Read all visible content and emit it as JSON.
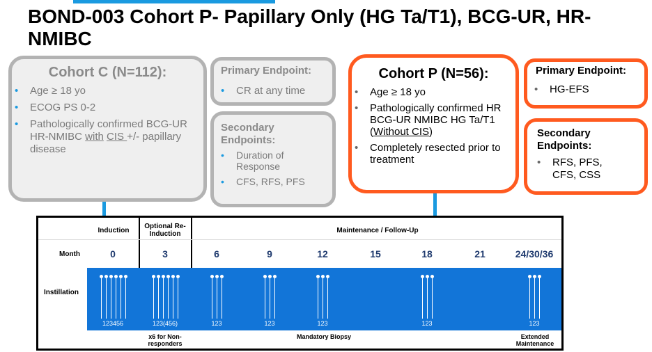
{
  "title": "BOND-003 Cohort P- Papillary Only (HG Ta/T1), BCG-UR, HR-NMIBC",
  "colors": {
    "accent_blue": "#1275d8",
    "orange": "#ff5a1f",
    "gray": "#b3b3b3"
  },
  "cohort_c": {
    "heading": "Cohort C (N=112):",
    "items": [
      "Age ≥ 18 yo",
      "ECOG PS 0-2"
    ],
    "item3_prefix": "Pathologically confirmed BCG-UR HR-NMIBC ",
    "item3_with": "with",
    "item3_cis": "CIS ",
    "item3_suffix": "+/- papillary disease"
  },
  "cohort_c_primary": {
    "heading": "Primary Endpoint:",
    "items": [
      "CR at any time"
    ]
  },
  "cohort_c_secondary": {
    "heading": "Secondary Endpoints:",
    "items": [
      "Duration of Response",
      "CFS, RFS, PFS"
    ]
  },
  "cohort_p": {
    "heading": "Cohort P (N=56):",
    "items": [
      "Age ≥ 18 yo"
    ],
    "item2_prefix": "Pathologically confirmed HR BCG-UR NMIBC HG Ta/T1 (",
    "item2_underlined": "Without CIS",
    "item2_suffix": ")",
    "item3": "Completely resected prior to treatment"
  },
  "cohort_p_primary": {
    "heading": "Primary Endpoint:",
    "items": [
      "HG-EFS"
    ]
  },
  "cohort_p_secondary": {
    "heading": "Secondary Endpoints:",
    "items": [
      "RFS, PFS, CFS, CSS"
    ]
  },
  "bullet": "•",
  "schedule": {
    "phase_induction": "Induction",
    "phase_reinduction": "Optional Re-Induction",
    "phase_maintenance": "Maintenance / Follow-Up",
    "month_label": "Month",
    "months": [
      "0",
      "3",
      "6",
      "9",
      "12",
      "15",
      "18",
      "21",
      "24/30/36"
    ],
    "instillation_label": "Instillation",
    "instillation_counts": [
      "123456",
      "123(456)",
      "123",
      "123",
      "123",
      "",
      "123",
      "",
      "123"
    ],
    "footnotes": [
      "x6 for Non-responders",
      "Mandatory Biopsy",
      "Extended Maintenance"
    ]
  }
}
